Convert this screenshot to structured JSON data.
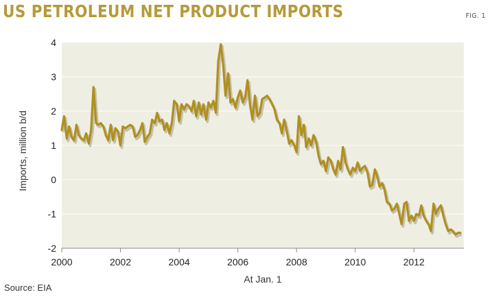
{
  "header": {
    "title": "US PETROLEUM NET PRODUCT IMPORTS",
    "fig_label": "FIG. 1"
  },
  "footer": {
    "source": "Source: EIA"
  },
  "colors": {
    "line": "#b08f1e",
    "plot_bg": "#eeeee2",
    "title": "#b59a3a"
  },
  "chart_data": {
    "type": "line",
    "title": "US PETROLEUM NET PRODUCT IMPORTS",
    "xlabel": "At Jan. 1",
    "ylabel": "Imports, million b/d",
    "xlim": [
      2000,
      2013.7
    ],
    "ylim": [
      -2,
      4
    ],
    "x_ticks": [
      2000,
      2002,
      2004,
      2006,
      2008,
      2010,
      2012
    ],
    "x_tick_labels": [
      "2000",
      "2002",
      "2004",
      "2006",
      "2008",
      "2010",
      "2012"
    ],
    "y_ticks": [
      -2,
      -1,
      0,
      1,
      2,
      3,
      4
    ],
    "y_tick_labels": [
      "-2",
      "-1",
      "0",
      "1",
      "2",
      "3",
      "4"
    ],
    "grid": "horizontal",
    "legend": "none",
    "series": [
      {
        "x": [
          2000.0,
          2000.08,
          2000.17,
          2000.25,
          2000.33,
          2000.42,
          2000.5,
          2000.58,
          2000.67,
          2000.75,
          2000.83,
          2000.92,
          2001.0,
          2001.08,
          2001.17,
          2001.25,
          2001.33,
          2001.42,
          2001.5,
          2001.58,
          2001.67,
          2001.75,
          2001.83,
          2001.92,
          2002.0,
          2002.08,
          2002.17,
          2002.25,
          2002.33,
          2002.42,
          2002.5,
          2002.58,
          2002.67,
          2002.75,
          2002.83,
          2002.92,
          2003.0,
          2003.08,
          2003.17,
          2003.25,
          2003.33,
          2003.42,
          2003.5,
          2003.58,
          2003.67,
          2003.75,
          2003.83,
          2003.92,
          2004.0,
          2004.08,
          2004.17,
          2004.25,
          2004.33,
          2004.42,
          2004.5,
          2004.58,
          2004.67,
          2004.75,
          2004.83,
          2004.92,
          2005.0,
          2005.08,
          2005.17,
          2005.25,
          2005.33,
          2005.42,
          2005.5,
          2005.58,
          2005.67,
          2005.75,
          2005.83,
          2005.92,
          2006.0,
          2006.08,
          2006.17,
          2006.25,
          2006.33,
          2006.42,
          2006.5,
          2006.58,
          2006.67,
          2006.75,
          2006.83,
          2006.92,
          2007.0,
          2007.08,
          2007.17,
          2007.25,
          2007.33,
          2007.42,
          2007.5,
          2007.58,
          2007.67,
          2007.75,
          2007.83,
          2007.92,
          2008.0,
          2008.08,
          2008.17,
          2008.25,
          2008.33,
          2008.42,
          2008.5,
          2008.58,
          2008.67,
          2008.75,
          2008.83,
          2008.92,
          2009.0,
          2009.08,
          2009.17,
          2009.25,
          2009.33,
          2009.42,
          2009.5,
          2009.58,
          2009.67,
          2009.75,
          2009.83,
          2009.92,
          2010.0,
          2010.08,
          2010.17,
          2010.25,
          2010.33,
          2010.42,
          2010.5,
          2010.58,
          2010.67,
          2010.75,
          2010.83,
          2010.92,
          2011.0,
          2011.08,
          2011.17,
          2011.25,
          2011.33,
          2011.42,
          2011.5,
          2011.58,
          2011.67,
          2011.75,
          2011.83,
          2011.92,
          2012.0,
          2012.08,
          2012.17,
          2012.25,
          2012.33,
          2012.42,
          2012.5,
          2012.58,
          2012.67,
          2012.75,
          2012.83,
          2012.92,
          2013.0,
          2013.08,
          2013.17,
          2013.25,
          2013.33,
          2013.42,
          2013.5,
          2013.58
        ],
        "values": [
          1.45,
          1.85,
          1.2,
          1.55,
          1.25,
          1.15,
          1.6,
          1.3,
          1.2,
          1.15,
          1.35,
          1.05,
          1.45,
          2.7,
          1.65,
          1.6,
          1.65,
          1.55,
          1.3,
          1.15,
          1.6,
          1.15,
          1.5,
          1.4,
          1.0,
          1.55,
          1.5,
          1.55,
          1.6,
          1.55,
          1.25,
          1.3,
          1.45,
          1.65,
          1.1,
          1.25,
          1.35,
          1.75,
          1.65,
          1.95,
          1.7,
          1.75,
          1.45,
          1.65,
          1.35,
          1.65,
          2.3,
          2.2,
          1.7,
          2.2,
          2.05,
          2.2,
          2.15,
          2.0,
          2.3,
          1.85,
          2.25,
          1.9,
          2.2,
          1.75,
          2.25,
          2.1,
          2.3,
          1.95,
          3.45,
          3.95,
          3.35,
          2.45,
          3.1,
          2.25,
          2.35,
          2.1,
          2.4,
          2.6,
          2.25,
          2.4,
          2.9,
          2.15,
          1.75,
          2.45,
          1.85,
          1.95,
          2.35,
          2.4,
          2.45,
          2.35,
          2.2,
          2.05,
          1.75,
          1.65,
          1.35,
          1.75,
          1.4,
          1.05,
          1.15,
          1.0,
          0.8,
          1.85,
          1.3,
          1.6,
          0.95,
          1.2,
          1.0,
          1.3,
          1.1,
          0.7,
          0.45,
          0.55,
          0.25,
          0.65,
          0.55,
          0.3,
          0.15,
          0.55,
          0.3,
          0.95,
          0.5,
          0.3,
          0.15,
          0.35,
          0.25,
          0.5,
          0.25,
          0.35,
          0.4,
          0.2,
          -0.2,
          -0.15,
          0.3,
          0.1,
          -0.2,
          -0.1,
          -0.3,
          -0.65,
          -0.7,
          -0.9,
          -0.85,
          -0.7,
          -1.0,
          -1.3,
          -0.7,
          -0.65,
          -1.2,
          -1.05,
          -1.2,
          -1.0,
          -1.05,
          -0.75,
          -1.05,
          -1.2,
          -1.3,
          -1.5,
          -0.7,
          -1.0,
          -0.85,
          -0.75,
          -1.05,
          -1.3,
          -1.5,
          -1.45,
          -1.5,
          -1.6,
          -1.55,
          -1.55
        ]
      }
    ]
  }
}
